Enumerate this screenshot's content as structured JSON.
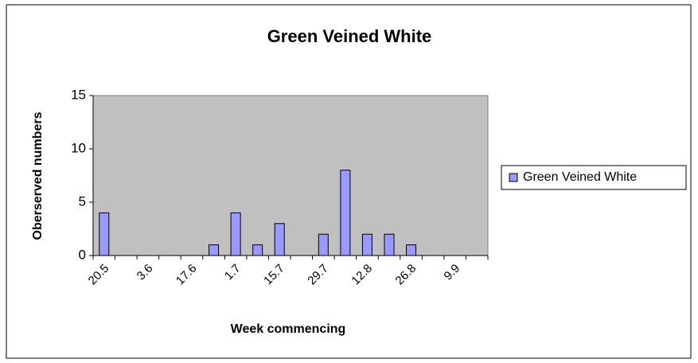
{
  "chart_data": {
    "type": "bar",
    "title": "Green Veined White",
    "x_label": "Week commencing",
    "y_label": "Oberserved numbers",
    "categories": [
      "20.5",
      null,
      "3.6",
      null,
      "17.6",
      null,
      "1.7",
      null,
      "15.7",
      null,
      "29.7",
      null,
      "12.8",
      null,
      "26.8",
      null,
      "9.9",
      null
    ],
    "series": [
      {
        "name": "Green Veined White",
        "color": "#9999ff",
        "values": [
          4,
          0,
          0,
          0,
          0,
          1,
          4,
          1,
          3,
          0,
          2,
          8,
          2,
          2,
          1,
          0,
          0,
          0
        ]
      }
    ],
    "ylim": [
      0,
      15
    ],
    "yticks": [
      0,
      5,
      10,
      15
    ],
    "legend": "right"
  }
}
